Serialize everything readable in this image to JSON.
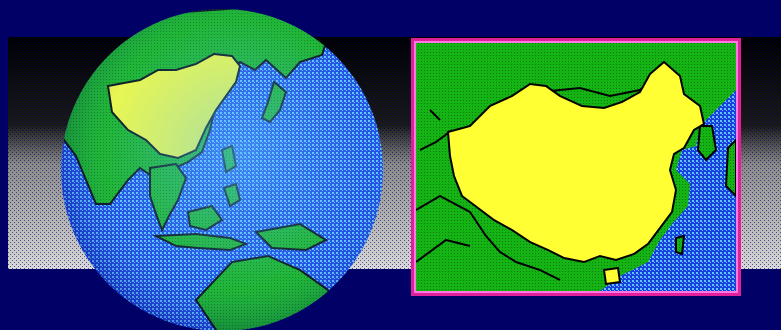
{
  "scene": {
    "colors": {
      "background": "#000066",
      "band_top": "#000000",
      "band_bottom": "#d8d8d8",
      "ocean_dark": "#1a3fe0",
      "ocean_light": "#63c5ff",
      "land": "#14b414",
      "land_dot": "#0b7a0b",
      "highlight_country": "#ffff33",
      "border_line": "#000000",
      "frame": "#e0209a",
      "frame_inner": "#ff77e0"
    },
    "globe": {
      "icon": "globe-icon",
      "highlighted_region": "china"
    },
    "inset_map": {
      "icon": "zoomed-map-icon",
      "highlighted_region": "china"
    }
  }
}
